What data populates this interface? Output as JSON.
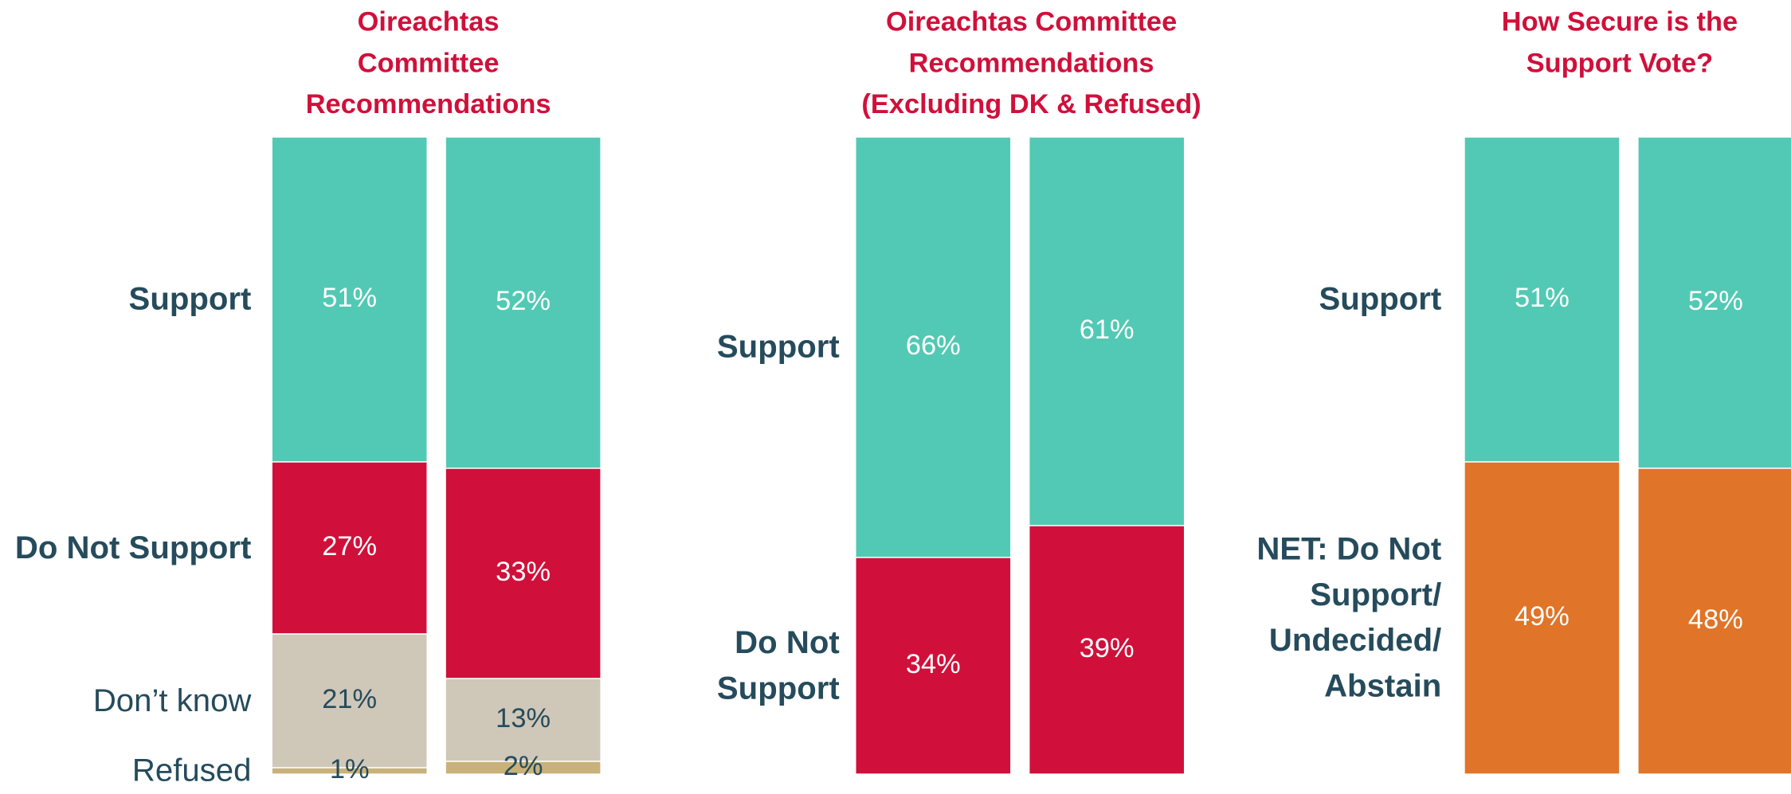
{
  "chart_data": [
    {
      "type": "bar",
      "stacked": true,
      "title": "Oireachtas Committee Recommendations",
      "categories": [
        null,
        null
      ],
      "series": [
        {
          "name": "Support",
          "color": "#52c9b4",
          "values": [
            51,
            52
          ],
          "value_labels": [
            "51%",
            "52%"
          ]
        },
        {
          "name": "Do Not Support",
          "color": "#d0103a",
          "values": [
            27,
            33
          ],
          "value_labels": [
            "27%",
            "33%"
          ]
        },
        {
          "name": "Don’t know",
          "color": "#cfc7b8",
          "values": [
            21,
            13
          ],
          "value_labels": [
            "21%",
            "13%"
          ]
        },
        {
          "name": "Refused",
          "color": "#c8b27a",
          "values": [
            1,
            2
          ],
          "value_labels": [
            "1%",
            "2%"
          ]
        }
      ]
    },
    {
      "type": "bar",
      "stacked": true,
      "title": "Oireachtas Committee Recommendations (Excluding DK & Refused)",
      "categories": [
        null,
        null
      ],
      "series": [
        {
          "name": "Support",
          "color": "#52c9b4",
          "values": [
            66,
            61
          ],
          "value_labels": [
            "66%",
            "61%"
          ]
        },
        {
          "name": "Do Not Support",
          "color": "#d0103a",
          "values": [
            34,
            39
          ],
          "value_labels": [
            "34%",
            "39%"
          ]
        }
      ]
    },
    {
      "type": "bar",
      "stacked": true,
      "title": "How Secure is the Support Vote?",
      "categories": [
        null,
        null
      ],
      "series": [
        {
          "name": "Support",
          "color": "#52c9b4",
          "values": [
            51,
            52
          ],
          "value_labels": [
            "51%",
            "52%"
          ]
        },
        {
          "name": "NET: Do Not Support/ Undecided/ Abstain",
          "color": "#e07428",
          "values": [
            49,
            48
          ],
          "value_labels": [
            "49%",
            "48%"
          ]
        }
      ]
    }
  ]
}
